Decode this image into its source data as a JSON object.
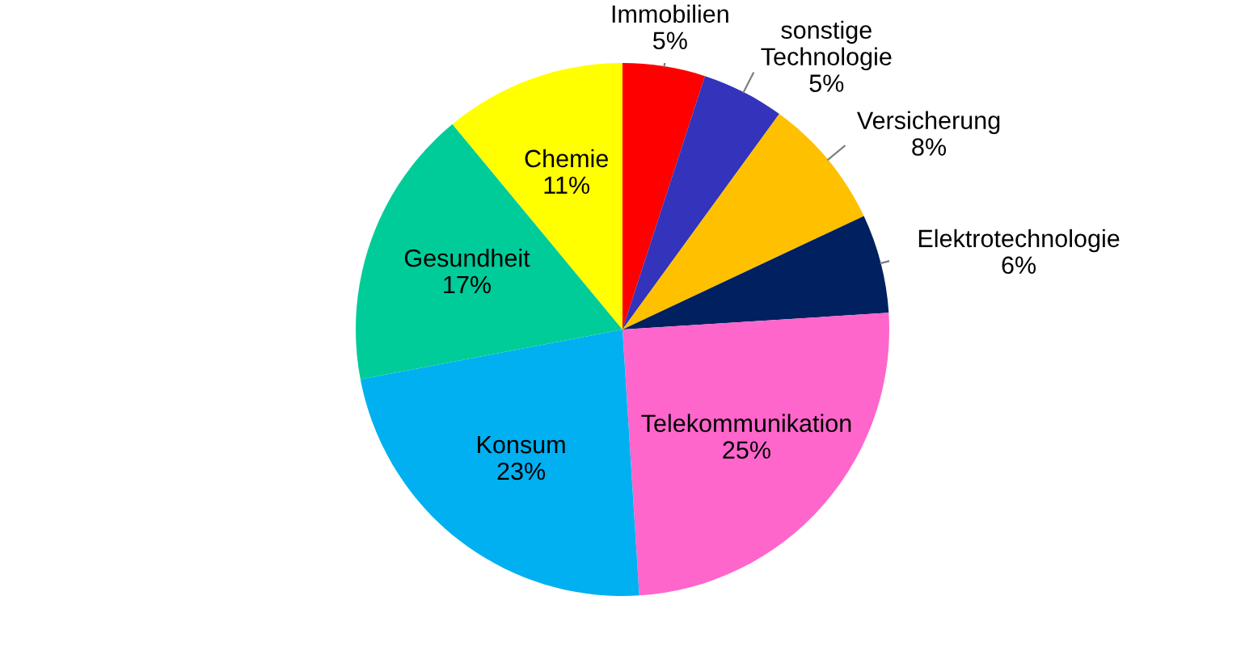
{
  "chart_data": {
    "type": "pie",
    "categories": [
      "Immobilien",
      "sonstige\nTechnologie",
      "Versicherung",
      "Elektrotechnologie",
      "Telekommunikation",
      "Konsum",
      "Gesundheit",
      "Chemie"
    ],
    "values": [
      5,
      5,
      8,
      6,
      25,
      23,
      17,
      11
    ],
    "colors": [
      "#ff0000",
      "#3333bb",
      "#ffc000",
      "#002060",
      "#ff66cc",
      "#00b0f0",
      "#00cc99",
      "#ffff00"
    ],
    "value_labels": [
      "5%",
      "5%",
      "8%",
      "6%",
      "25%",
      "23%",
      "17%",
      "11%"
    ],
    "legend": false
  }
}
